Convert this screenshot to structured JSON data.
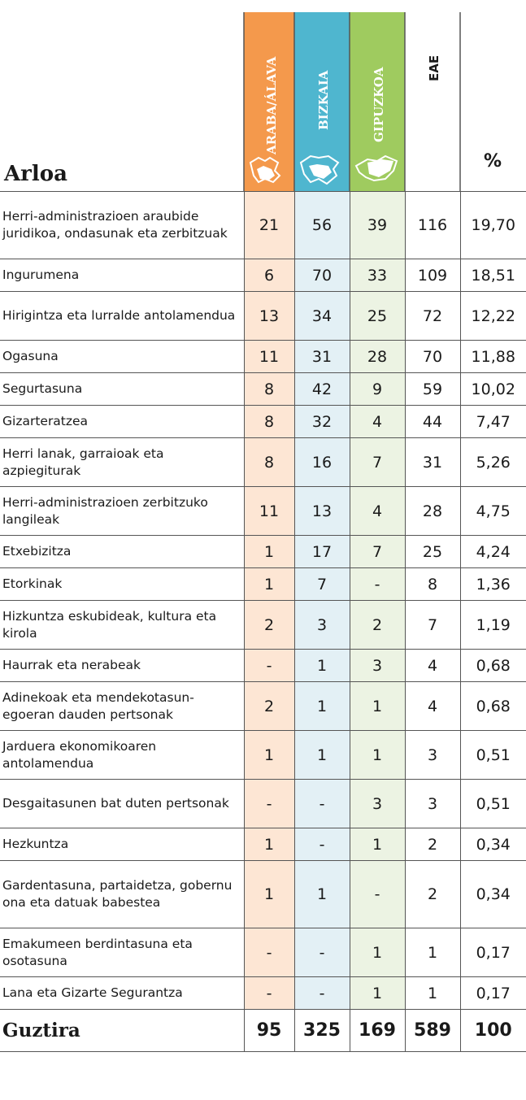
{
  "header": {
    "title": "Arloa",
    "columns": [
      "ARABA/ÁLAVA",
      "BIZKAIA",
      "GIPUZKOA",
      "EAE",
      "%"
    ]
  },
  "table": {
    "rows": [
      [
        "Herri-administrazioen araubide juridikoa, ondasunak eta zerbitzuak",
        "21",
        "56",
        "39",
        "116",
        "19,70"
      ],
      [
        "Ingurumena",
        "6",
        "70",
        "33",
        "109",
        "18,51"
      ],
      [
        "Hirigintza eta lurralde antolamendua",
        "13",
        "34",
        "25",
        "72",
        "12,22"
      ],
      [
        "Ogasuna",
        "11",
        "31",
        "28",
        "70",
        "11,88"
      ],
      [
        "Segurtasuna",
        "8",
        "42",
        "9",
        "59",
        "10,02"
      ],
      [
        "Gizarteratzea",
        "8",
        "32",
        "4",
        "44",
        "7,47"
      ],
      [
        "Herri lanak, garraioak eta azpiegiturak",
        "8",
        "16",
        "7",
        "31",
        "5,26"
      ],
      [
        "Herri-administrazioen zerbitzuko langileak",
        "11",
        "13",
        "4",
        "28",
        "4,75"
      ],
      [
        "Etxebizitza",
        "1",
        "17",
        "7",
        "25",
        "4,24"
      ],
      [
        "Etorkinak",
        "1",
        "7",
        "-",
        "8",
        "1,36"
      ],
      [
        "Hizkuntza eskubideak, kultura eta kirola",
        "2",
        "3",
        "2",
        "7",
        "1,19"
      ],
      [
        "Haurrak eta nerabeak",
        "-",
        "1",
        "3",
        "4",
        "0,68"
      ],
      [
        "Adinekoak eta mendekotasun-egoeran dauden pertsonak",
        "2",
        "1",
        "1",
        "4",
        "0,68"
      ],
      [
        "Jarduera ekonomikoaren antolamendua",
        "1",
        "1",
        "1",
        "3",
        "0,51"
      ],
      [
        "Desgaitasunen bat duten pertsonak",
        "-",
        "-",
        "3",
        "3",
        "0,51"
      ],
      [
        "Hezkuntza",
        "1",
        "-",
        "1",
        "2",
        "0,34"
      ],
      [
        "Gardentasuna, partaidetza, gobernu ona eta datuak babestea",
        "1",
        "1",
        "-",
        "2",
        "0,34"
      ],
      [
        "Emakumeen berdintasuna eta osotasuna",
        "-",
        "-",
        "1",
        "1",
        "0,17"
      ],
      [
        "Lana eta Gizarte Segurantza",
        "-",
        "-",
        "1",
        "1",
        "0,17"
      ]
    ],
    "total": [
      "Guztira",
      "95",
      "325",
      "169",
      "589",
      "100"
    ]
  }
}
